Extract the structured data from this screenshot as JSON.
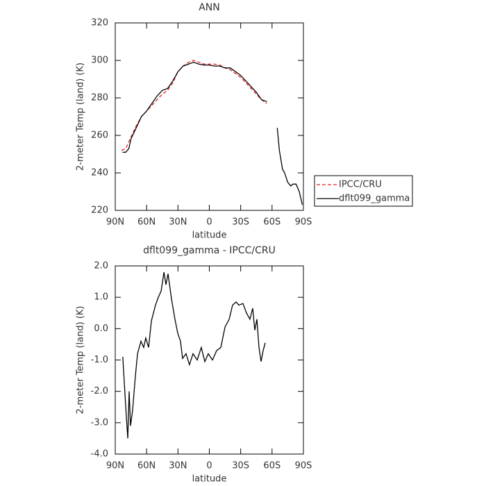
{
  "chart_data": [
    {
      "type": "line",
      "title": "ANN",
      "x_label": "latitude",
      "y_label": "2-meter Temp (land) (K)",
      "xlim": [
        90,
        -90
      ],
      "xticks": [
        {
          "value": 90,
          "label": "90N"
        },
        {
          "value": 60,
          "label": "60N"
        },
        {
          "value": 30,
          "label": "30N"
        },
        0,
        {
          "value": -30,
          "label": "30S"
        },
        {
          "value": -60,
          "label": "60S"
        },
        {
          "value": -90,
          "label": "90S"
        }
      ],
      "ylim": [
        220,
        320
      ],
      "yticks": [
        220,
        240,
        260,
        280,
        300,
        320
      ],
      "legend": "right",
      "series": [
        {
          "name": "IPCC/CRU",
          "color": "#e02020",
          "linestyle": "dashed",
          "x": [
            84,
            80,
            75,
            70,
            65,
            60,
            55,
            50,
            45,
            40,
            35,
            30,
            25,
            20,
            15,
            10,
            5,
            0,
            -5,
            -10,
            -15,
            -20,
            -25,
            -30,
            -35,
            -40,
            -45,
            -50,
            -55
          ],
          "values": [
            252,
            253,
            259,
            265,
            270,
            273,
            276,
            279,
            282,
            284,
            288,
            294,
            297,
            299,
            300,
            299,
            298,
            298,
            298,
            297.5,
            296,
            295,
            293,
            291,
            288,
            285,
            282,
            279,
            277
          ]
        },
        {
          "name": "dflt099_gamma",
          "color": "#000000",
          "linestyle": "solid",
          "x": [
            83,
            80,
            77,
            75,
            70,
            65,
            60,
            55,
            50,
            45,
            40,
            35,
            30,
            25,
            20,
            15,
            10,
            5,
            0,
            -5,
            -10,
            -15,
            -20,
            -25,
            -30,
            -35,
            -40,
            -45,
            -50,
            -55,
            -60,
            -65,
            -67,
            -70,
            -72,
            -75,
            -78,
            -80,
            -83,
            -86,
            -89
          ],
          "values": [
            251,
            251,
            253,
            258,
            264,
            270,
            273,
            277,
            281,
            284,
            285,
            289,
            294,
            297,
            298,
            299,
            298,
            297.5,
            297.5,
            297,
            297,
            296,
            296,
            294,
            292,
            289,
            286,
            283,
            279,
            278,
            null,
            264,
            252,
            242,
            240,
            235,
            233,
            234,
            234,
            230,
            223
          ]
        }
      ]
    },
    {
      "type": "line",
      "title": "dflt099_gamma - IPCC/CRU",
      "x_label": "latitude",
      "y_label": "2-meter Temp (land) (K)",
      "xlim": [
        90,
        -90
      ],
      "xticks": [
        {
          "value": 90,
          "label": "90N"
        },
        {
          "value": 60,
          "label": "60N"
        },
        {
          "value": 30,
          "label": "30N"
        },
        0,
        {
          "value": -30,
          "label": "30S"
        },
        {
          "value": -60,
          "label": "60S"
        },
        {
          "value": -90,
          "label": "90S"
        }
      ],
      "ylim": [
        -4,
        2
      ],
      "yticks": [
        {
          "value": -4,
          "label": "-4.0"
        },
        {
          "value": -3,
          "label": "-3.0"
        },
        {
          "value": -2,
          "label": "-2.0"
        },
        {
          "value": -1,
          "label": "-1.0"
        },
        {
          "value": 0,
          "label": "0.0"
        },
        {
          "value": 1,
          "label": "1.0"
        },
        {
          "value": 2,
          "label": "2.0"
        }
      ],
      "series": [
        {
          "color": "#000000",
          "linestyle": "solid",
          "x": [
            82.8,
            81.4,
            79.4,
            78,
            76.7,
            75.4,
            73.4,
            70.7,
            68.7,
            65.4,
            62.8,
            60.8,
            58.1,
            55.4,
            51.5,
            48.8,
            46.1,
            43.4,
            41.5,
            39.5,
            36.2,
            32.9,
            30.2,
            27.6,
            25.6,
            22.3,
            19,
            15.6,
            11.6,
            7.7,
            4.3,
            1,
            -3,
            -7,
            -11,
            -15,
            -19,
            -22.2,
            -25.6,
            -28.2,
            -32.2,
            -35.5,
            -38.8,
            -41.5,
            -43.5,
            -45.5,
            -47.5,
            -49.5,
            -51.5,
            -53.5
          ],
          "values": [
            -0.9,
            -1.7,
            -2.8,
            -3.5,
            -2.0,
            -3.1,
            -2.6,
            -1.5,
            -0.8,
            -0.4,
            -0.6,
            -0.3,
            -0.6,
            0.25,
            0.75,
            1.0,
            1.2,
            1.8,
            1.4,
            1.75,
            0.95,
            0.3,
            -0.15,
            -0.4,
            -0.95,
            -0.8,
            -1.15,
            -0.8,
            -1.0,
            -0.6,
            -1.05,
            -0.8,
            -1.0,
            -0.7,
            -0.6,
            0.05,
            0.3,
            0.75,
            0.85,
            0.75,
            0.8,
            0.5,
            0.3,
            0.65,
            -0.05,
            0.3,
            -0.6,
            -1.05,
            -0.7,
            -0.45
          ]
        }
      ]
    }
  ]
}
